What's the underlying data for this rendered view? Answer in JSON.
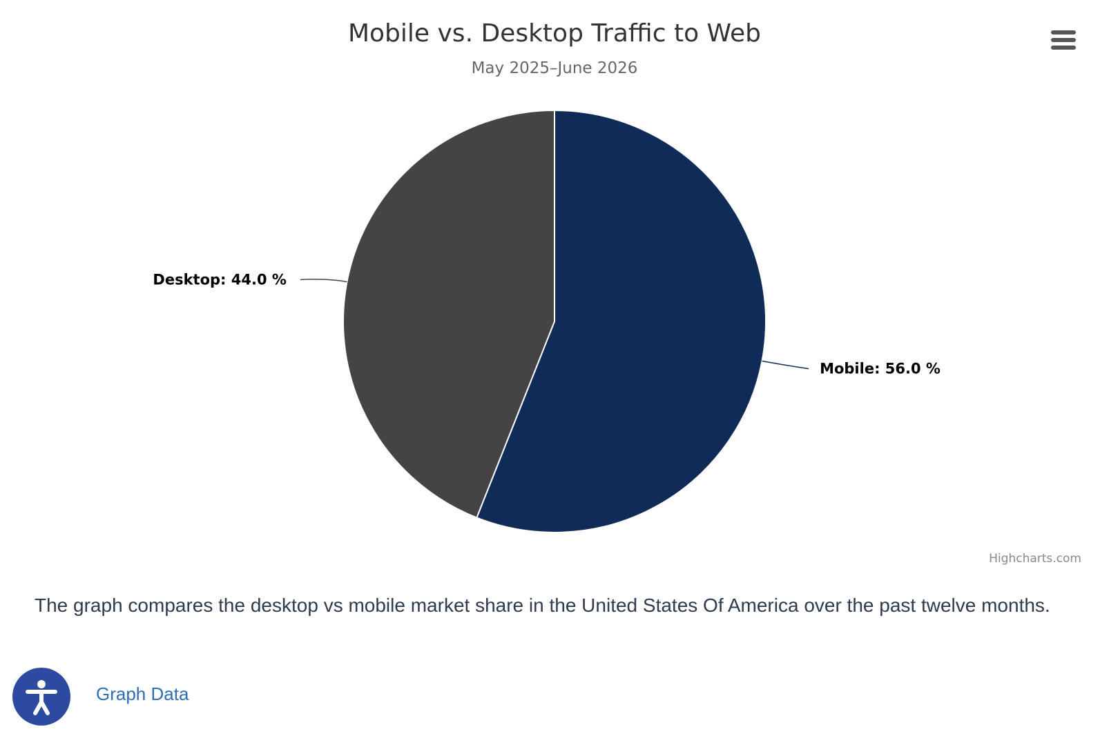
{
  "chart_data": {
    "type": "pie",
    "title": "Mobile vs. Desktop Traffic to Web",
    "subtitle": "May 2025–June 2026",
    "series": [
      {
        "data": [
          {
            "name": "Mobile",
            "y": 56.0,
            "color": "#102b57",
            "label": "Mobile: 56.0 %"
          },
          {
            "name": "Desktop",
            "y": 44.0,
            "color": "#444447",
            "label": "Desktop: 44.0 %"
          }
        ]
      }
    ],
    "start_angle_deg": 0,
    "legend": "none"
  },
  "credits": "Highcharts.com",
  "caption": "The graph compares the desktop vs mobile market share in the United States Of America over the past twelve months.",
  "graph_data_link": "Graph Data",
  "icons": {
    "menu": "hamburger-menu-icon",
    "accessibility": "accessibility-person-icon"
  }
}
